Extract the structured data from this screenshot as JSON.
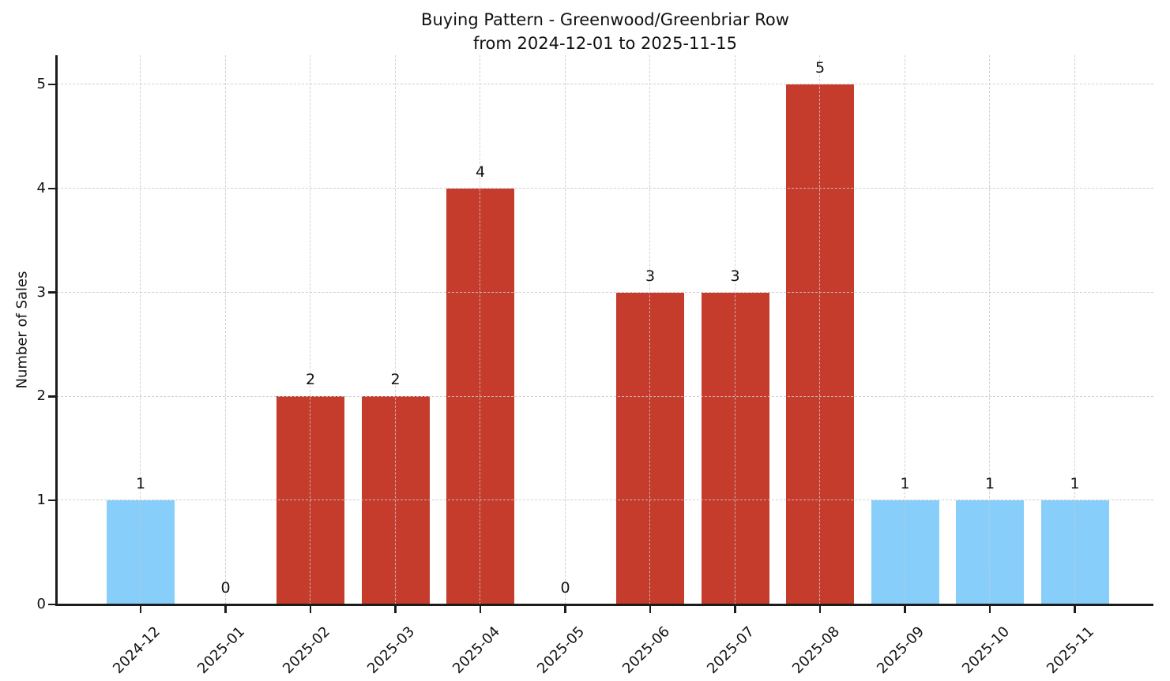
{
  "chart_data": {
    "type": "bar",
    "title": "Buying Pattern - Greenwood/Greenbriar Row",
    "subtitle": "from 2024-12-01 to 2025-11-15",
    "xlabel": "",
    "ylabel": "Number of Sales",
    "categories": [
      "2024-12",
      "2025-01",
      "2025-02",
      "2025-03",
      "2025-04",
      "2025-05",
      "2025-06",
      "2025-07",
      "2025-08",
      "2025-09",
      "2025-10",
      "2025-11"
    ],
    "values": [
      1,
      0,
      2,
      2,
      4,
      0,
      3,
      3,
      5,
      1,
      1,
      1
    ],
    "bar_colors": [
      "#87CEFA",
      null,
      "#C53B2C",
      "#C53B2C",
      "#C53B2C",
      null,
      "#C53B2C",
      "#C53B2C",
      "#C53B2C",
      "#87CEFA",
      "#87CEFA",
      "#87CEFA"
    ],
    "show_value_labels": true,
    "yticks": [
      0,
      1,
      2,
      3,
      4,
      5
    ],
    "ylim": [
      0,
      5.28
    ],
    "xtick_rotation_deg": 45,
    "grid": {
      "horizontal": true,
      "vertical": true,
      "style": "dashed",
      "color": "#c9c9c9"
    },
    "legend": null,
    "colors": {
      "bar_red": "#C53B2C",
      "bar_blue": "#87CEFA",
      "grid": "#c9c9c9",
      "axis": "#1c1c1c",
      "background": "#ffffff"
    }
  }
}
